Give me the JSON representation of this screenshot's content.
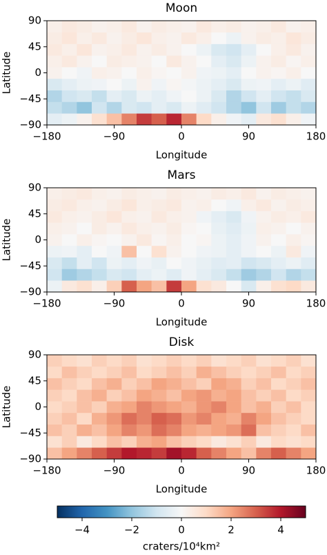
{
  "chart_data": [
    {
      "type": "heatmap",
      "title": "Moon",
      "x_label": "Longitude",
      "y_label": "Latitude",
      "xbins": [
        -180,
        -160,
        -140,
        -120,
        -100,
        -80,
        -60,
        -40,
        -20,
        0,
        20,
        40,
        60,
        80,
        100,
        120,
        140,
        160,
        180
      ],
      "ybins": [
        -90,
        -70,
        -50,
        -30,
        -10,
        10,
        30,
        50,
        70,
        90
      ],
      "z": [
        [
          -0.5,
          -0.3,
          0.2,
          0.8,
          1.5,
          2.5,
          3.5,
          3.0,
          3.8,
          2.5,
          1.0,
          0.3,
          -0.2,
          -0.5,
          0.5,
          0.8,
          0.3,
          -0.2
        ],
        [
          -1.2,
          -1.5,
          -2.0,
          -1.0,
          -1.5,
          -0.8,
          -1.0,
          -0.5,
          -0.8,
          -0.3,
          -0.6,
          -1.0,
          -1.5,
          -2.0,
          -1.0,
          -1.8,
          -1.2,
          -1.5
        ],
        [
          -1.5,
          -1.0,
          -0.8,
          -1.2,
          -0.5,
          -0.8,
          -0.3,
          -0.5,
          -0.2,
          0.0,
          -0.3,
          -0.8,
          -1.5,
          -1.0,
          -0.5,
          -1.0,
          -1.2,
          -0.8
        ],
        [
          -0.8,
          -0.5,
          -0.3,
          -0.2,
          0.0,
          -0.3,
          0.2,
          -0.2,
          0.1,
          -0.1,
          -0.3,
          -0.5,
          -0.8,
          -0.3,
          -0.2,
          -0.5,
          -0.3,
          -0.6
        ],
        [
          0.2,
          0.0,
          -0.2,
          0.3,
          0.2,
          0.0,
          0.3,
          0.1,
          0.0,
          0.2,
          -0.2,
          -0.3,
          -0.5,
          0.0,
          0.2,
          0.1,
          0.3,
          0.0
        ],
        [
          0.3,
          0.5,
          0.2,
          0.0,
          0.4,
          0.3,
          0.2,
          0.0,
          0.5,
          0.2,
          0.0,
          -0.5,
          -0.8,
          -0.3,
          0.2,
          0.4,
          0.1,
          0.3
        ],
        [
          0.5,
          0.3,
          0.6,
          0.2,
          0.3,
          0.5,
          0.2,
          0.4,
          0.2,
          0.0,
          -0.3,
          -0.8,
          -1.0,
          -0.5,
          0.0,
          0.3,
          0.5,
          0.2
        ],
        [
          0.4,
          0.6,
          0.3,
          0.5,
          0.2,
          0.4,
          0.6,
          0.3,
          0.2,
          0.5,
          0.3,
          0.0,
          -0.3,
          0.2,
          0.4,
          0.3,
          0.6,
          0.4
        ],
        [
          0.3,
          0.5,
          0.4,
          0.2,
          0.3,
          0.5,
          0.2,
          0.4,
          0.3,
          0.2,
          0.5,
          0.3,
          0.4,
          0.2,
          0.3,
          0.5,
          0.2,
          0.3
        ]
      ],
      "xlim": [
        -180,
        180
      ],
      "ylim": [
        -90,
        90
      ],
      "xticks": [
        {
          "value": -180,
          "label": "−180"
        },
        {
          "value": -90,
          "label": "−90"
        },
        0,
        90,
        180
      ],
      "yticks": [
        {
          "value": -90,
          "label": "−90"
        },
        {
          "value": -45,
          "label": "−45"
        },
        0,
        45,
        90
      ]
    },
    {
      "type": "heatmap",
      "title": "Mars",
      "x_label": "Longitude",
      "y_label": "Latitude",
      "xbins": [
        -180,
        -160,
        -140,
        -120,
        -100,
        -80,
        -60,
        -40,
        -20,
        0,
        20,
        40,
        60,
        80,
        100,
        120,
        140,
        160,
        180
      ],
      "ybins": [
        -90,
        -70,
        -50,
        -30,
        -10,
        10,
        30,
        50,
        70,
        90
      ],
      "z": [
        [
          -0.3,
          0.5,
          0.8,
          0.3,
          1.2,
          3.0,
          2.0,
          1.5,
          3.5,
          2.0,
          0.8,
          0.5,
          0.0,
          -0.8,
          0.3,
          0.8,
          1.0,
          0.5
        ],
        [
          -1.0,
          -1.8,
          -1.5,
          -1.2,
          -0.8,
          -1.0,
          -0.5,
          -0.3,
          -0.6,
          -0.2,
          -0.5,
          -0.8,
          -1.2,
          -1.8,
          -1.5,
          -1.0,
          -1.5,
          -1.2
        ],
        [
          -0.8,
          -1.2,
          -0.5,
          -1.0,
          -0.3,
          -0.5,
          -0.2,
          -0.4,
          0.0,
          -0.2,
          -0.4,
          -0.6,
          -0.5,
          -1.0,
          -0.8,
          -0.5,
          -0.3,
          -0.6
        ],
        [
          -0.3,
          -0.2,
          -0.5,
          0.0,
          -0.2,
          1.5,
          0.0,
          0.8,
          0.2,
          0.0,
          -0.2,
          -0.3,
          -0.5,
          -0.2,
          0.0,
          -0.3,
          0.5,
          -0.2
        ],
        [
          0.2,
          0.0,
          0.3,
          0.1,
          0.0,
          0.2,
          0.5,
          0.1,
          0.3,
          0.0,
          0.1,
          -0.3,
          -0.5,
          -0.2,
          0.2,
          0.0,
          0.3,
          0.1
        ],
        [
          0.3,
          0.2,
          0.0,
          0.4,
          0.2,
          0.5,
          0.3,
          0.2,
          0.4,
          0.1,
          0.0,
          -0.4,
          -0.6,
          -0.3,
          0.3,
          0.2,
          0.0,
          0.2
        ],
        [
          0.5,
          0.3,
          0.2,
          0.4,
          0.6,
          0.3,
          0.2,
          0.5,
          0.3,
          0.2,
          -0.2,
          -0.5,
          -0.8,
          -0.2,
          0.2,
          0.4,
          0.3,
          0.5
        ],
        [
          0.4,
          0.5,
          0.3,
          0.2,
          0.4,
          0.6,
          0.3,
          0.4,
          0.5,
          0.2,
          0.3,
          0.0,
          -0.2,
          0.3,
          0.5,
          0.2,
          0.4,
          0.3
        ],
        [
          0.3,
          0.4,
          0.5,
          0.3,
          0.2,
          0.4,
          0.3,
          0.2,
          0.4,
          0.3,
          0.2,
          0.4,
          0.3,
          0.5,
          0.2,
          0.4,
          0.3,
          0.2
        ]
      ],
      "xlim": [
        -180,
        180
      ],
      "ylim": [
        -90,
        90
      ],
      "xticks": [
        {
          "value": -180,
          "label": "−180"
        },
        {
          "value": -90,
          "label": "−90"
        },
        0,
        90,
        180
      ],
      "yticks": [
        {
          "value": -90,
          "label": "−90"
        },
        {
          "value": -45,
          "label": "−45"
        },
        0,
        45,
        90
      ]
    },
    {
      "type": "heatmap",
      "title": "Disk",
      "x_label": "Longitude",
      "y_label": "Latitude",
      "xbins": [
        -180,
        -160,
        -140,
        -120,
        -100,
        -80,
        -60,
        -40,
        -20,
        0,
        20,
        40,
        60,
        80,
        100,
        120,
        140,
        160,
        180
      ],
      "ybins": [
        -90,
        -70,
        -50,
        -30,
        -10,
        10,
        30,
        50,
        70,
        90
      ],
      "z": [
        [
          1.5,
          2.0,
          2.5,
          3.0,
          3.5,
          4.0,
          3.8,
          3.5,
          4.2,
          3.8,
          3.0,
          2.5,
          2.0,
          1.5,
          2.5,
          3.0,
          2.5,
          2.0
        ],
        [
          0.8,
          1.2,
          0.5,
          1.0,
          1.5,
          1.2,
          1.8,
          2.0,
          1.5,
          1.2,
          1.0,
          0.5,
          0.8,
          1.2,
          0.5,
          1.0,
          0.8,
          1.0
        ],
        [
          1.5,
          1.2,
          1.8,
          1.5,
          2.0,
          2.5,
          2.2,
          2.8,
          2.5,
          2.0,
          1.8,
          2.0,
          2.2,
          2.8,
          1.5,
          1.2,
          1.0,
          1.5
        ],
        [
          1.2,
          1.5,
          1.0,
          1.8,
          2.2,
          2.8,
          2.5,
          3.0,
          2.8,
          2.2,
          2.5,
          2.0,
          1.8,
          2.5,
          2.0,
          1.5,
          1.2,
          1.0
        ],
        [
          1.0,
          1.2,
          1.5,
          1.2,
          1.8,
          2.0,
          2.5,
          2.2,
          2.0,
          1.8,
          2.2,
          2.5,
          2.0,
          1.5,
          1.8,
          1.2,
          1.5,
          1.0
        ],
        [
          1.2,
          1.0,
          1.5,
          1.8,
          1.2,
          1.5,
          2.0,
          1.8,
          1.5,
          2.0,
          2.2,
          1.8,
          2.0,
          1.5,
          1.2,
          1.5,
          1.0,
          1.2
        ],
        [
          1.5,
          1.2,
          1.0,
          1.5,
          1.8,
          1.2,
          1.5,
          2.0,
          1.8,
          1.5,
          1.2,
          2.0,
          1.8,
          1.2,
          1.5,
          1.0,
          1.2,
          1.5
        ],
        [
          1.0,
          1.5,
          1.2,
          1.0,
          1.2,
          1.5,
          1.0,
          1.2,
          1.5,
          1.2,
          1.8,
          1.5,
          1.2,
          1.0,
          1.2,
          1.5,
          1.0,
          1.2
        ],
        [
          1.2,
          1.0,
          0.8,
          1.2,
          1.0,
          1.2,
          0.8,
          1.0,
          1.2,
          1.0,
          1.2,
          0.8,
          1.0,
          1.2,
          0.8,
          1.0,
          1.2,
          0.8
        ]
      ],
      "xlim": [
        -180,
        180
      ],
      "ylim": [
        -90,
        90
      ],
      "xticks": [
        {
          "value": -180,
          "label": "−180"
        },
        {
          "value": -90,
          "label": "−90"
        },
        0,
        90,
        180
      ],
      "yticks": [
        {
          "value": -90,
          "label": "−90"
        },
        {
          "value": -45,
          "label": "−45"
        },
        0,
        45,
        90
      ]
    }
  ],
  "colorbar": {
    "colormap": "RdBu_r",
    "label": "craters/10⁴km²",
    "lim": [
      -5,
      5
    ],
    "ticks": [
      {
        "value": -4,
        "label": "−4"
      },
      {
        "value": -2,
        "label": "−2"
      },
      0,
      2,
      4
    ]
  }
}
